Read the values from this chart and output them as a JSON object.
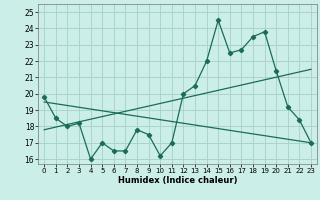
{
  "xlabel": "Humidex (Indice chaleur)",
  "bg_color": "#cceee8",
  "grid_color": "#aad4ce",
  "line_color": "#1a6b5a",
  "xlim": [
    -0.5,
    23.5
  ],
  "ylim": [
    15.7,
    25.5
  ],
  "yticks": [
    16,
    17,
    18,
    19,
    20,
    21,
    22,
    23,
    24,
    25
  ],
  "xticks": [
    0,
    1,
    2,
    3,
    4,
    5,
    6,
    7,
    8,
    9,
    10,
    11,
    12,
    13,
    14,
    15,
    16,
    17,
    18,
    19,
    20,
    21,
    22,
    23
  ],
  "line1_x": [
    0,
    1,
    2,
    3,
    4,
    5,
    6,
    7,
    8,
    9,
    10,
    11,
    12,
    13,
    14,
    15,
    16,
    17,
    18,
    19,
    20,
    21,
    22,
    23
  ],
  "line1_y": [
    19.8,
    18.5,
    18.0,
    18.2,
    16.0,
    17.0,
    16.5,
    16.5,
    17.8,
    17.5,
    16.2,
    17.0,
    20.0,
    20.5,
    22.0,
    24.5,
    22.5,
    22.7,
    23.5,
    23.8,
    21.4,
    19.2,
    18.4,
    17.0
  ],
  "line2_x": [
    0,
    23
  ],
  "line2_y": [
    17.8,
    21.5
  ],
  "line3_x": [
    0,
    23
  ],
  "line3_y": [
    19.5,
    17.0
  ]
}
